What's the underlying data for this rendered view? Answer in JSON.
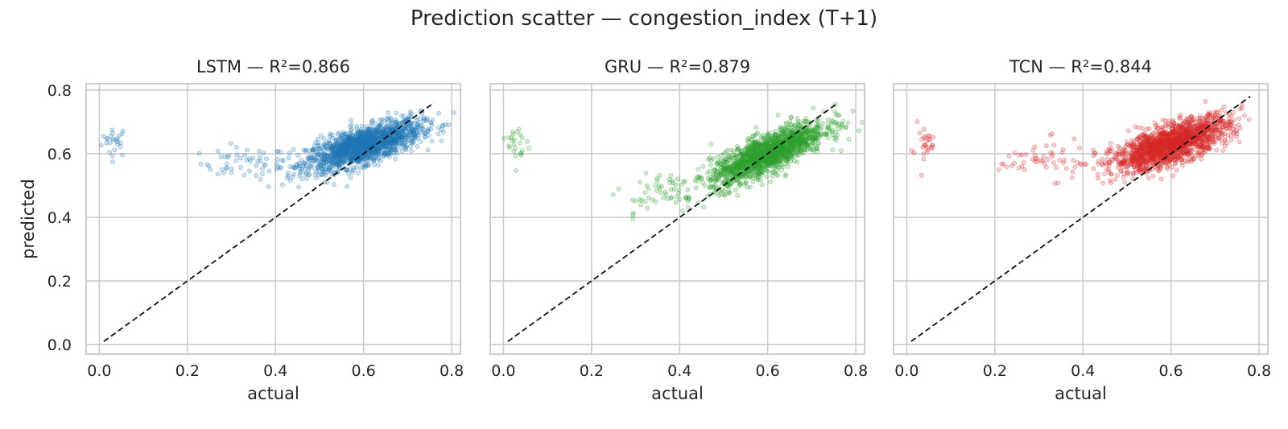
{
  "figure": {
    "title": "Prediction scatter — congestion_index (T+1)"
  },
  "chart_data": [
    {
      "type": "scatter",
      "title": "LSTM — R²=0.866",
      "xlabel": "actual",
      "ylabel": "predicted",
      "xlim": [
        -0.03,
        0.82
      ],
      "ylim": [
        -0.03,
        0.82
      ],
      "xticks": [
        "0.0",
        "0.2",
        "0.4",
        "0.6",
        "0.8"
      ],
      "yticks": [
        "0.0",
        "0.2",
        "0.4",
        "0.6",
        "0.8"
      ],
      "color": "#1f77b4",
      "grid": true,
      "reference_line": {
        "style": "dashed",
        "color": "#000000",
        "from": [
          0.01,
          0.01
        ],
        "to": [
          0.76,
          0.76
        ]
      },
      "clusters": [
        {
          "x": 0.035,
          "y": 0.64,
          "sx": 0.015,
          "sy": 0.025,
          "n": 25,
          "slope": 0
        },
        {
          "x": 0.33,
          "y": 0.57,
          "sx": 0.05,
          "sy": 0.025,
          "n": 50,
          "slope": 0
        },
        {
          "x": 0.6,
          "y": 0.625,
          "sx": 0.065,
          "sy": 0.028,
          "n": 1600,
          "slope": 0.4
        }
      ]
    },
    {
      "type": "scatter",
      "title": "GRU — R²=0.879",
      "xlabel": "actual",
      "ylabel": "",
      "xlim": [
        -0.03,
        0.82
      ],
      "ylim": [
        -0.03,
        0.82
      ],
      "xticks": [
        "0.0",
        "0.2",
        "0.4",
        "0.6",
        "0.8"
      ],
      "yticks": [
        "0.0",
        "0.2",
        "0.4",
        "0.6",
        "0.8"
      ],
      "color": "#2ca02c",
      "grid": true,
      "reference_line": {
        "style": "dashed",
        "color": "#000000",
        "from": [
          0.01,
          0.01
        ],
        "to": [
          0.76,
          0.76
        ]
      },
      "clusters": [
        {
          "x": 0.035,
          "y": 0.63,
          "sx": 0.013,
          "sy": 0.035,
          "n": 25,
          "slope": 0
        },
        {
          "x": 0.35,
          "y": 0.48,
          "sx": 0.05,
          "sy": 0.04,
          "n": 55,
          "slope": 0.3
        },
        {
          "x": 0.6,
          "y": 0.6,
          "sx": 0.065,
          "sy": 0.03,
          "n": 1600,
          "slope": 0.6
        }
      ]
    },
    {
      "type": "scatter",
      "title": "TCN — R²=0.844",
      "xlabel": "actual",
      "ylabel": "",
      "xlim": [
        -0.03,
        0.82
      ],
      "ylim": [
        -0.03,
        0.82
      ],
      "xticks": [
        "0.0",
        "0.2",
        "0.4",
        "0.6",
        "0.8"
      ],
      "yticks": [
        "0.0",
        "0.2",
        "0.4",
        "0.6",
        "0.8"
      ],
      "color": "#d62728",
      "grid": true,
      "reference_line": {
        "style": "dashed",
        "color": "#000000",
        "from": [
          0.01,
          0.01
        ],
        "to": [
          0.78,
          0.78
        ]
      },
      "clusters": [
        {
          "x": 0.04,
          "y": 0.63,
          "sx": 0.015,
          "sy": 0.035,
          "n": 28,
          "slope": 0
        },
        {
          "x": 0.32,
          "y": 0.58,
          "sx": 0.055,
          "sy": 0.03,
          "n": 60,
          "slope": 0
        },
        {
          "x": 0.6,
          "y": 0.63,
          "sx": 0.065,
          "sy": 0.03,
          "n": 1600,
          "slope": 0.45
        }
      ]
    }
  ]
}
